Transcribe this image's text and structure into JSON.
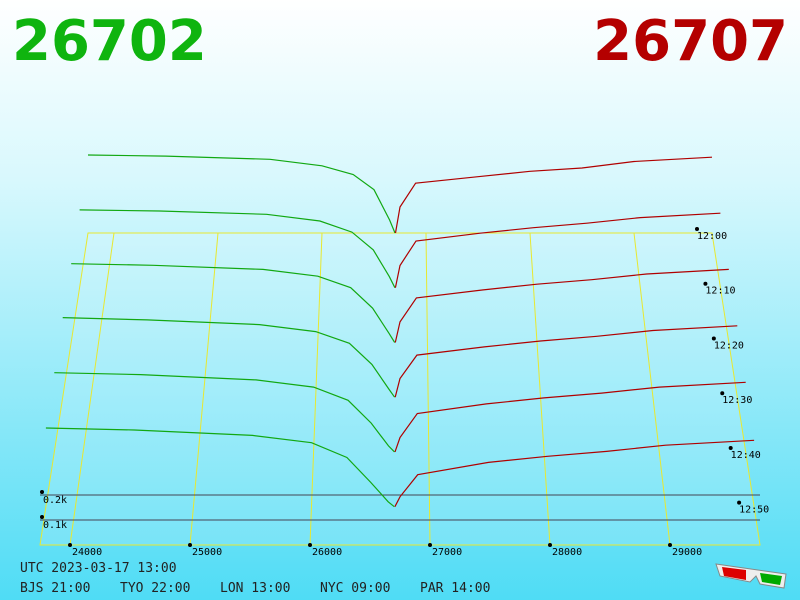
{
  "chart_data": {
    "type": "depth3d",
    "bid": 26702,
    "ask": 26707,
    "bid_color": "#0fb40f",
    "ask_color": "#b40000",
    "xlim": [
      23750,
      29750
    ],
    "xticks": [
      24000,
      25000,
      26000,
      27000,
      28000,
      29000
    ],
    "ylim": [
      0,
      400
    ],
    "yticks": [
      {
        "value": 100,
        "label": "0.1k"
      },
      {
        "value": 200,
        "label": "0.2k"
      }
    ],
    "tlim": [
      0,
      57
    ],
    "tticks": [
      {
        "value": 0,
        "label": "12:00"
      },
      {
        "value": 10,
        "label": "12:10"
      },
      {
        "value": 20,
        "label": "12:20"
      },
      {
        "value": 30,
        "label": "12:30"
      },
      {
        "value": 40,
        "label": "12:40"
      },
      {
        "value": 50,
        "label": "12:50"
      }
    ],
    "times": [
      0,
      10,
      20,
      30,
      40,
      50
    ],
    "series": [
      {
        "color": "#12a812",
        "prices": [
          23750,
          24500,
          25500,
          26000,
          26300,
          26500,
          26650,
          26702
        ],
        "values": [
          [
            360,
            355,
            340,
            310,
            270,
            200,
            60,
            0
          ],
          [
            350,
            345,
            330,
            300,
            250,
            170,
            50,
            0
          ],
          [
            345,
            338,
            320,
            290,
            240,
            150,
            40,
            0
          ],
          [
            340,
            330,
            310,
            280,
            230,
            140,
            35,
            0
          ],
          [
            330,
            322,
            300,
            270,
            215,
            120,
            25,
            0
          ],
          [
            320,
            312,
            290,
            260,
            200,
            100,
            20,
            0
          ]
        ]
      },
      {
        "color": "#b00000",
        "prices": [
          26707,
          26750,
          26900,
          27500,
          28000,
          28500,
          29000,
          29750
        ],
        "values": [
          [
            0,
            120,
            230,
            260,
            285,
            300,
            330,
            350
          ],
          [
            0,
            100,
            210,
            245,
            270,
            290,
            315,
            335
          ],
          [
            0,
            90,
            195,
            230,
            255,
            275,
            300,
            320
          ],
          [
            0,
            80,
            180,
            215,
            240,
            260,
            285,
            305
          ],
          [
            0,
            60,
            160,
            200,
            225,
            245,
            270,
            290
          ],
          [
            0,
            40,
            130,
            180,
            205,
            225,
            250,
            270
          ]
        ]
      }
    ]
  },
  "footer": {
    "utc": "UTC 2023-03-17 13:00",
    "clocks": [
      "BJS 21:00",
      "TYO 22:00",
      "LON 13:00",
      "NYC 09:00",
      "PAR 14:00"
    ]
  }
}
